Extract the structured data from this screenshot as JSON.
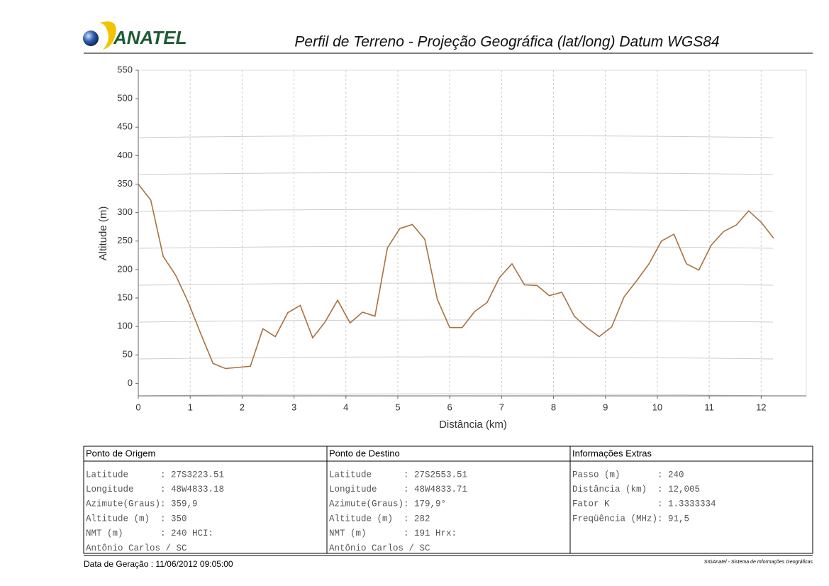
{
  "header": {
    "logo": "ANATEL",
    "title": "Perfil de Terreno - Projeção Geográfica (lat/long) Datum WGS84"
  },
  "chart_data": {
    "type": "line",
    "xlabel": "Distância (km)",
    "ylabel": "Altitude (m)",
    "x": [
      0,
      0.24,
      0.48,
      0.72,
      0.96,
      1.2,
      1.44,
      1.68,
      1.92,
      2.16,
      2.4,
      2.64,
      2.88,
      3.12,
      3.36,
      3.6,
      3.84,
      4.08,
      4.32,
      4.56,
      4.8,
      5.04,
      5.28,
      5.52,
      5.76,
      6,
      6.24,
      6.48,
      6.72,
      6.96,
      7.2,
      7.44,
      7.68,
      7.92,
      8.16,
      8.4,
      8.64,
      8.88,
      9.12,
      9.36,
      9.6,
      9.84,
      10.08,
      10.32,
      10.56,
      10.8,
      11.04,
      11.28,
      11.52,
      11.76,
      12,
      12.24
    ],
    "values": [
      350,
      322,
      223,
      190,
      143,
      88,
      35,
      26,
      28,
      30,
      96,
      82,
      124,
      137,
      80,
      108,
      146,
      106,
      125,
      118,
      238,
      272,
      279,
      253,
      148,
      98,
      98,
      126,
      142,
      186,
      210,
      173,
      172,
      154,
      160,
      118,
      98,
      82,
      99,
      152,
      180,
      210,
      250,
      262,
      210,
      199,
      243,
      267,
      278,
      303,
      283,
      255
    ],
    "color": "#a8723f",
    "xlim": [
      0,
      12.87
    ],
    "ylim": [
      -22,
      550
    ],
    "xticks": [
      0,
      1,
      2,
      3,
      4,
      5,
      6,
      7,
      8,
      9,
      10,
      11,
      12
    ],
    "yticks": [
      0,
      50,
      100,
      150,
      200,
      250,
      300,
      350,
      400,
      450,
      500,
      550
    ],
    "grid": true
  },
  "table": {
    "columns": [
      {
        "title": "Ponto de Origem",
        "rows": [
          "Latitude      : 27S3223.51",
          "Longitude     : 48W4833.18",
          "Azimute(Graus): 359,9",
          "Altitude (m)  : 350",
          "NMT (m)       : 240 HCI:",
          "Antônio Carlos / SC"
        ]
      },
      {
        "title": "Ponto de Destino",
        "rows": [
          "Latitude      : 27S2553.51",
          "Longitude     : 48W4833.71",
          "Azimute(Graus): 179,9°",
          "Altitude (m)  : 282",
          "NMT (m)       : 191 Hrx:",
          "Antônio Carlos / SC"
        ]
      },
      {
        "title": "Informações Extras",
        "rows": [
          "Passo (m)       : 240",
          "Distância (km)  : 12,005",
          "Fator K         : 1.3333334",
          "Freqüência (MHz): 91,5"
        ]
      }
    ]
  },
  "footer": {
    "date": "Data de Geração : 11/06/2012 09:05:00",
    "system": "SIGAnatel - Sistema de Informações Geográficas"
  }
}
